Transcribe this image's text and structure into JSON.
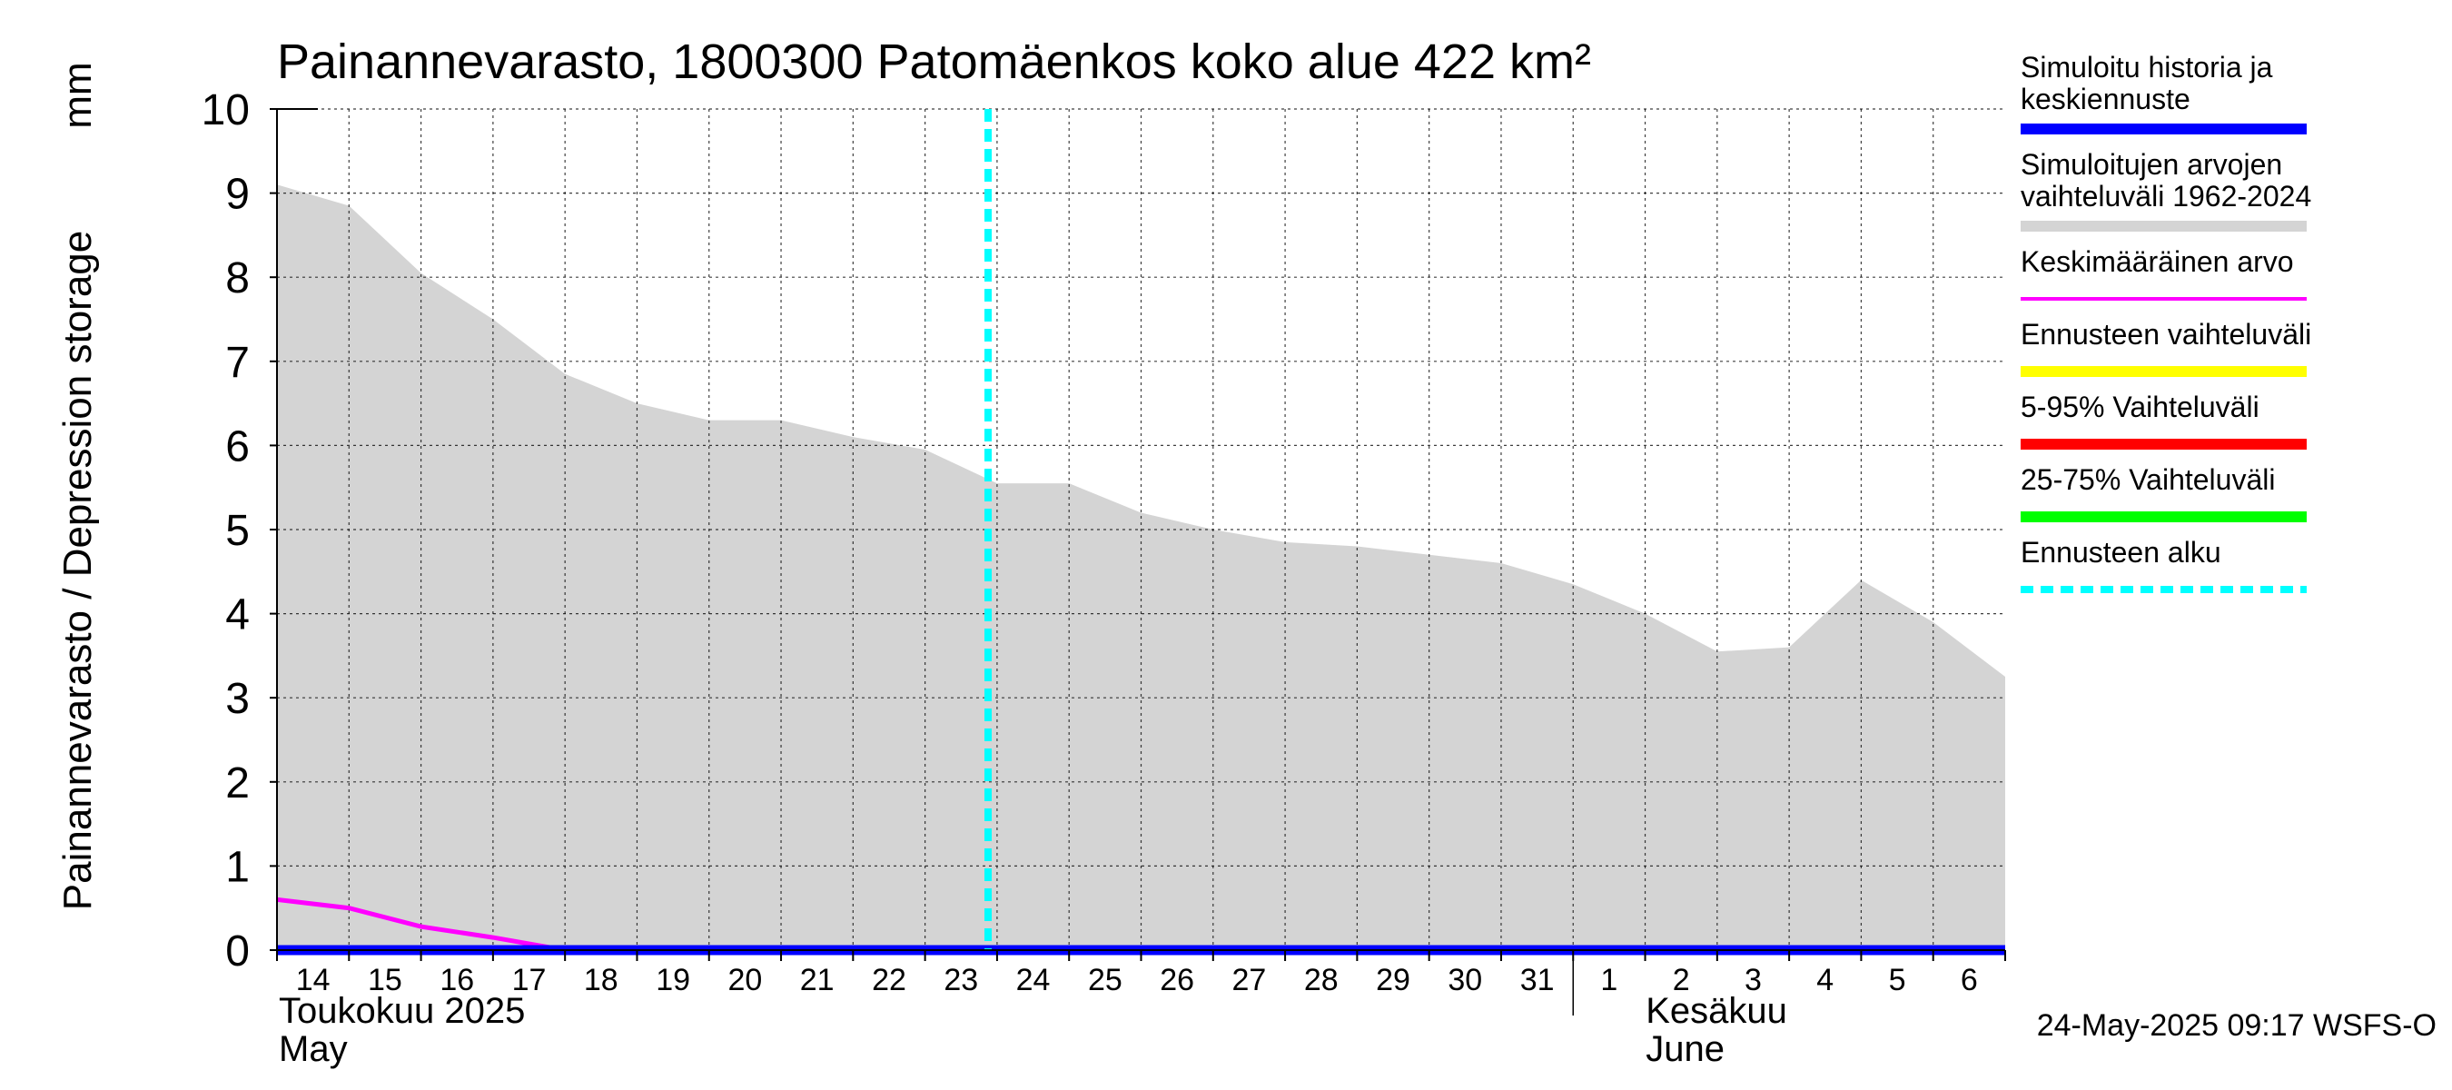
{
  "chart_data": {
    "type": "area",
    "title": "Painannevarasto, 1800300 Patomäenkos koko alue 422 km²",
    "ylabel": "Painannevarasto / Depression storage",
    "yunit": "mm",
    "ylim": [
      0,
      10
    ],
    "yticks": [
      0,
      1,
      2,
      3,
      4,
      5,
      6,
      7,
      8,
      9,
      10
    ],
    "grid": true,
    "x_start_date": "2025-05-14",
    "xlim": [
      "2025-05-14",
      "2025-06-07"
    ],
    "x_tick_labels": [
      "14",
      "15",
      "16",
      "17",
      "18",
      "19",
      "20",
      "21",
      "22",
      "23",
      "24",
      "25",
      "26",
      "27",
      "28",
      "29",
      "30",
      "31",
      "1",
      "2",
      "3",
      "4",
      "5",
      "6"
    ],
    "month_labels": [
      {
        "line1": "Toukokuu  2025",
        "line2": "May",
        "date": "2025-05-14"
      },
      {
        "line1": "Kesäkuu",
        "line2": "June",
        "date": "2025-06-01"
      }
    ],
    "forecast_start": "2025-05-23T21:00",
    "range_band": {
      "name": "Simuloitujen arvojen vaihteluväli 1962-2024",
      "color": "#d4d4d4",
      "x": [
        "2025-05-14",
        "2025-05-15",
        "2025-05-16",
        "2025-05-17",
        "2025-05-18",
        "2025-05-19",
        "2025-05-20",
        "2025-05-21",
        "2025-05-22",
        "2025-05-23",
        "2025-05-24",
        "2025-05-25",
        "2025-05-26",
        "2025-05-27",
        "2025-05-28",
        "2025-05-29",
        "2025-05-30",
        "2025-05-31",
        "2025-06-01",
        "2025-06-02",
        "2025-06-03",
        "2025-06-04",
        "2025-06-05",
        "2025-06-06",
        "2025-06-07"
      ],
      "upper": [
        9.1,
        8.85,
        8.05,
        7.5,
        6.85,
        6.5,
        6.3,
        6.3,
        6.1,
        5.95,
        5.55,
        5.55,
        5.2,
        5.0,
        4.85,
        4.8,
        4.7,
        4.6,
        4.35,
        4.0,
        3.55,
        3.6,
        4.4,
        3.9,
        3.25
      ],
      "lower": [
        0,
        0,
        0,
        0,
        0,
        0,
        0,
        0,
        0,
        0,
        0,
        0,
        0,
        0,
        0,
        0,
        0,
        0,
        0,
        0,
        0,
        0,
        0,
        0,
        0
      ]
    },
    "series": [
      {
        "name": "Keskimääräinen arvo",
        "color": "#ff00ff",
        "x": [
          "2025-05-14",
          "2025-05-15",
          "2025-05-16",
          "2025-05-17",
          "2025-05-18",
          "2025-06-07"
        ],
        "values": [
          0.6,
          0.5,
          0.28,
          0.15,
          0.0,
          0.0
        ]
      },
      {
        "name": "Simuloitu historia ja keskiennuste",
        "color": "#0000ff",
        "x": [
          "2025-05-14",
          "2025-06-07"
        ],
        "values": [
          0.0,
          0.0
        ]
      }
    ],
    "legend": {
      "placement": "right",
      "items": [
        {
          "line1": "Simuloitu historia ja",
          "line2": "keskiennuste",
          "color": "#0000ff",
          "style": "solid"
        },
        {
          "line1": "Simuloitujen arvojen",
          "line2": "vaihteluväli 1962-2024",
          "color": "#d4d4d4",
          "style": "solid"
        },
        {
          "line1": "Keskimääräinen arvo",
          "line2": "",
          "color": "#ff00ff",
          "style": "thin"
        },
        {
          "line1": "Ennusteen vaihteluväli",
          "line2": "",
          "color": "#ffff00",
          "style": "solid"
        },
        {
          "line1": "5-95% Vaihteluväli",
          "line2": "",
          "color": "#ff0000",
          "style": "solid"
        },
        {
          "line1": "25-75% Vaihteluväli",
          "line2": "",
          "color": "#00ff00",
          "style": "solid"
        },
        {
          "line1": "Ennusteen alku",
          "line2": "",
          "color": "#00ffff",
          "style": "dashed"
        }
      ]
    },
    "timestamp": "24-May-2025 09:17 WSFS-O"
  }
}
